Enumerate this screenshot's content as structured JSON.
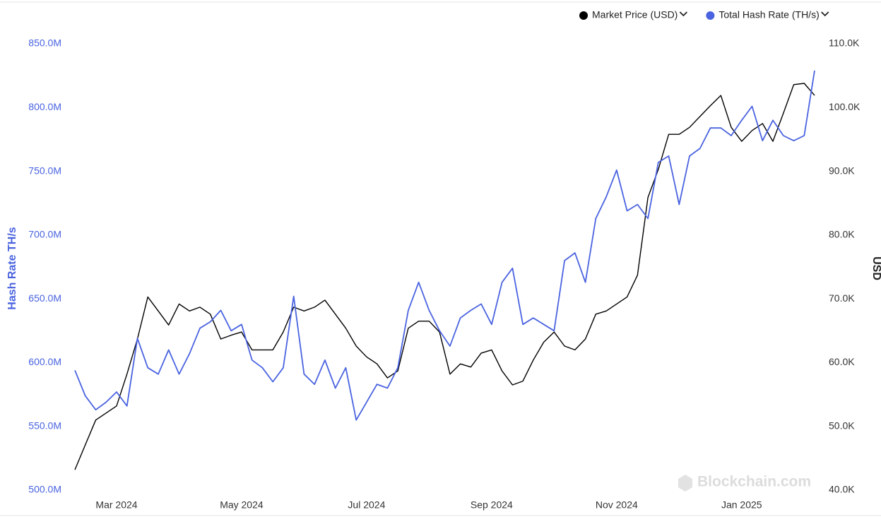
{
  "chart_data": {
    "type": "line",
    "categories": [
      null,
      null,
      null,
      null,
      "Mar 2024",
      null,
      null,
      null,
      null,
      null,
      null,
      null,
      null,
      null,
      null,
      null,
      "May 2024",
      null,
      null,
      null,
      null,
      null,
      null,
      null,
      null,
      null,
      null,
      null,
      "Jul 2024",
      null,
      null,
      null,
      null,
      null,
      null,
      null,
      null,
      null,
      null,
      null,
      "Sep 2024",
      null,
      null,
      null,
      null,
      null,
      null,
      null,
      null,
      null,
      null,
      null,
      "Nov 2024",
      null,
      null,
      null,
      null,
      null,
      null,
      null,
      null,
      null,
      null,
      null,
      "Jan 2025",
      null,
      null,
      null,
      null,
      null,
      null,
      null
    ],
    "series": [
      {
        "name": "Market Price (USD)",
        "color": "#000000",
        "axis": "y2",
        "values": [
          43.2,
          47.1,
          51.0,
          52.1,
          53.2,
          58.2,
          63.7,
          70.3,
          68.1,
          65.9,
          69.2,
          68.1,
          68.7,
          67.6,
          63.7,
          64.3,
          64.8,
          62.0,
          62.0,
          62.0,
          64.8,
          68.7,
          68.1,
          68.7,
          69.8,
          67.6,
          65.4,
          62.6,
          60.9,
          59.8,
          57.6,
          58.7,
          65.4,
          66.5,
          66.5,
          64.8,
          58.2,
          59.8,
          59.3,
          61.5,
          62.0,
          58.7,
          56.5,
          57.1,
          60.4,
          63.2,
          64.8,
          62.6,
          62.0,
          63.7,
          67.6,
          68.1,
          69.2,
          70.3,
          73.7,
          85.9,
          90.3,
          95.8,
          95.8,
          96.9,
          98.6,
          100.3,
          101.9,
          96.9,
          94.7,
          96.4,
          97.5,
          94.7,
          99.1,
          103.6,
          103.8,
          101.9
        ]
      },
      {
        "name": "Total Hash Rate (TH/s)",
        "color": "#4a63e0",
        "axis": "y",
        "values": [
          594,
          574,
          563,
          569,
          577,
          566,
          619,
          596,
          591,
          610,
          591,
          607,
          627,
          632,
          641,
          625,
          630,
          602,
          596,
          585,
          596,
          652,
          591,
          583,
          602,
          580,
          596,
          555,
          569,
          583,
          580,
          596,
          641,
          663,
          641,
          625,
          613,
          635,
          641,
          646,
          630,
          663,
          674,
          630,
          635,
          630,
          625,
          680,
          686,
          663,
          713,
          730,
          751,
          719,
          724,
          713,
          757,
          762,
          724,
          762,
          768,
          784,
          784,
          778,
          790,
          801,
          774,
          790,
          778,
          774,
          778,
          829
        ]
      }
    ],
    "ylabel": "Hash Rate TH/s",
    "y2label": "USD",
    "ylim": [
      500,
      850
    ],
    "yticks": [
      {
        "value": 500,
        "label": "500.0M"
      },
      {
        "value": 550,
        "label": "550.0M"
      },
      {
        "value": 600,
        "label": "600.0M"
      },
      {
        "value": 650,
        "label": "650.0M"
      },
      {
        "value": 700,
        "label": "700.0M"
      },
      {
        "value": 750,
        "label": "750.0M"
      },
      {
        "value": 800,
        "label": "800.0M"
      },
      {
        "value": 850,
        "label": "850.0M"
      }
    ],
    "y2lim": [
      40,
      110
    ],
    "y2ticks": [
      {
        "value": 40,
        "label": "40.0K"
      },
      {
        "value": 50,
        "label": "50.0K"
      },
      {
        "value": 60,
        "label": "60.0K"
      },
      {
        "value": 70,
        "label": "70.0K"
      },
      {
        "value": 80,
        "label": "80.0K"
      },
      {
        "value": 90,
        "label": "90.0K"
      },
      {
        "value": 100,
        "label": "100.0K"
      },
      {
        "value": 110,
        "label": "110.0K"
      }
    ],
    "watermark": "Blockchain.com",
    "grid": false
  }
}
